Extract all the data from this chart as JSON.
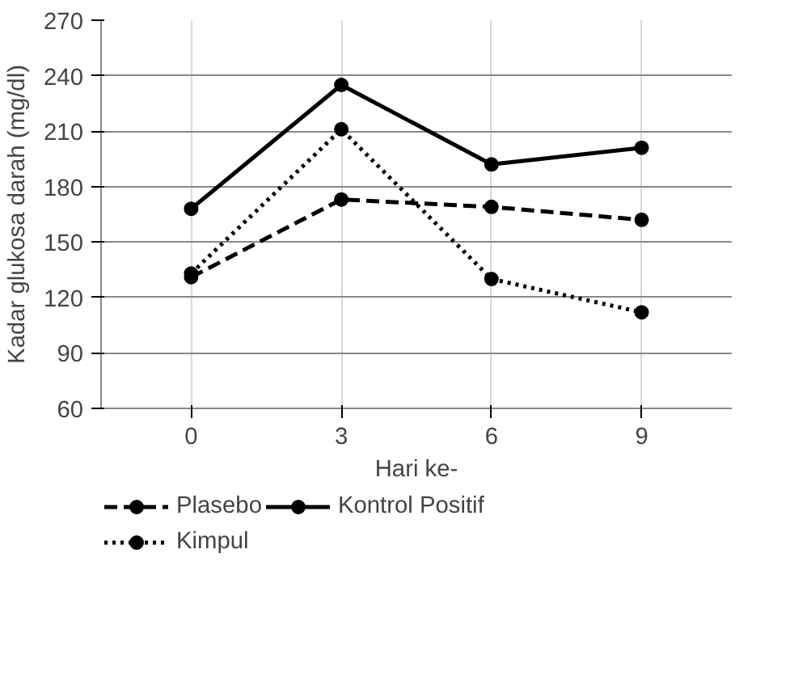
{
  "chart_data": {
    "type": "line",
    "xlabel": "Hari ke-",
    "ylabel": "Kadar glukosa darah (mg/dl)",
    "categories": [
      "0",
      "3",
      "6",
      "9"
    ],
    "series": [
      {
        "name": "Plasebo",
        "color": "#000000",
        "line_style": "dashed",
        "values": [
          131,
          173,
          169,
          162
        ]
      },
      {
        "name": "Kontrol Positif",
        "color": "#000000",
        "line_style": "solid",
        "values": [
          168,
          235,
          192,
          201
        ]
      },
      {
        "name": "Kimpul",
        "color": "#000000",
        "line_style": "dotted",
        "values": [
          133,
          211,
          130,
          112
        ]
      }
    ],
    "ylim": [
      60,
      270
    ],
    "yticks": [
      60,
      90,
      120,
      150,
      180,
      210,
      240,
      270
    ],
    "grid": true,
    "legend": "bottom",
    "marker": "circle"
  }
}
